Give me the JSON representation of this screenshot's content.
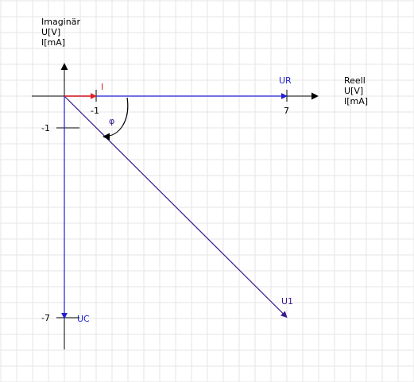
{
  "axes": {
    "imag_title": "Imaginär",
    "imag_unit_u": "U[V]",
    "imag_unit_i": "I[mA]",
    "real_title": "Reell",
    "real_unit_u": "U[V]",
    "real_unit_i": "I[mA]"
  },
  "ticks": {
    "real_1": "-1",
    "real_7": "7",
    "imag_1": "-1",
    "imag_7": "-7"
  },
  "phasors": {
    "I": {
      "label": "I",
      "x": 1,
      "y": 0,
      "color": "#e02020"
    },
    "UR": {
      "label": "UR",
      "x": 7,
      "y": 0,
      "color": "#1f1fd0"
    },
    "UC": {
      "label": "UC",
      "x": 0,
      "y": -7,
      "color": "#1f1fd0"
    },
    "U1": {
      "label": "U1",
      "x": 7,
      "y": -7,
      "color": "#3a1a8c"
    }
  },
  "angle": {
    "label": "φ"
  },
  "colors": {
    "grid": "#e6e6e6",
    "axis": "#000000"
  }
}
